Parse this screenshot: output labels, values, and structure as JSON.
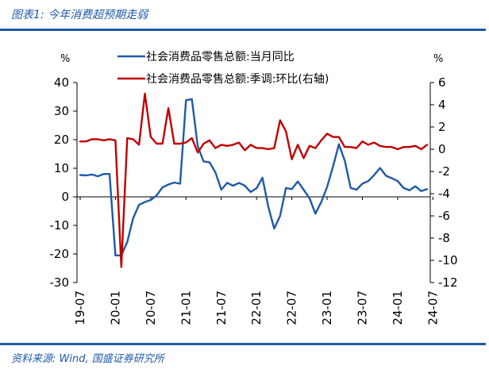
{
  "header": {
    "title": "图表1: 今年消费超预期走弱"
  },
  "footer": {
    "source": "资料来源: Wind, 国盛证券研究所"
  },
  "chart_data": {
    "type": "line",
    "left_axis": {
      "unit": "%",
      "ylim": [
        -30,
        40
      ],
      "ticks": [
        40,
        30,
        20,
        10,
        0,
        -10,
        -20,
        -30
      ]
    },
    "right_axis": {
      "unit": "%",
      "ylim": [
        -12,
        6
      ],
      "ticks": [
        6,
        4,
        2,
        0,
        -2,
        -4,
        -6,
        -8,
        -10,
        -12
      ]
    },
    "x_ticks": [
      "19-07",
      "20-01",
      "20-07",
      "21-01",
      "21-07",
      "22-01",
      "22-07",
      "23-01",
      "23-07",
      "24-01",
      "24-07"
    ],
    "x_start": "2019-07",
    "legend_position": "top",
    "grid": false,
    "series": [
      {
        "name": "社会消费品零售总额:当月同比",
        "axis": "left",
        "color": "#1f5aa8",
        "values": [
          7.6,
          7.5,
          7.8,
          7.2,
          8.0,
          8.0,
          -20.5,
          -20.5,
          -15.8,
          -7.5,
          -2.8,
          -1.8,
          -1.1,
          0.5,
          3.3,
          4.3,
          5.0,
          4.6,
          33.8,
          34.2,
          17.7,
          12.4,
          12.1,
          8.5,
          2.5,
          4.9,
          3.9,
          4.9,
          3.9,
          1.7,
          3.0,
          6.7,
          -3.5,
          -11.1,
          -6.7,
          3.1,
          2.7,
          5.4,
          2.5,
          -0.5,
          -5.9,
          -1.8,
          3.5,
          10.6,
          18.4,
          12.7,
          3.1,
          2.5,
          4.6,
          5.5,
          7.6,
          10.1,
          7.4,
          6.5,
          5.5,
          3.1,
          2.3,
          3.7,
          2.0,
          2.7
        ]
      },
      {
        "name": "社会消费品零售总额:季调:环比(右轴)",
        "axis": "right",
        "color": "#c00000",
        "values": [
          0.7,
          0.7,
          0.9,
          0.9,
          0.8,
          0.9,
          0.8,
          -10.6,
          1.0,
          0.9,
          0.4,
          5.0,
          1.1,
          0.5,
          0.5,
          3.7,
          0.5,
          0.5,
          0.6,
          1.0,
          -0.3,
          0.5,
          0.8,
          0.1,
          0.4,
          0.3,
          0.4,
          0.6,
          -0.1,
          0.4,
          0.1,
          0.1,
          0.0,
          0.1,
          2.6,
          1.6,
          -0.9,
          0.4,
          -0.8,
          0.3,
          0.1,
          0.8,
          1.4,
          1.1,
          1.1,
          0.2,
          0.2,
          0.1,
          0.7,
          0.4,
          0.6,
          0.3,
          0.2,
          0.2,
          0.0,
          0.2,
          0.2,
          0.3,
          0.0,
          0.4
        ]
      }
    ]
  }
}
